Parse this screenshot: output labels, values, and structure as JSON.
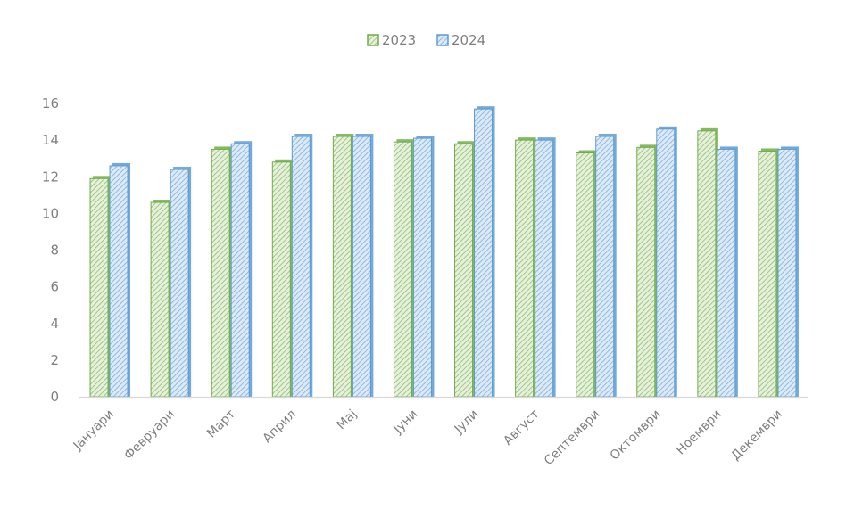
{
  "chart_data": {
    "type": "bar",
    "title": "",
    "xlabel": "",
    "ylabel": "",
    "categories": [
      "Јануари",
      "Февруари",
      "Март",
      "Април",
      "Мај",
      "Јуни",
      "Јули",
      "Август",
      "Септември",
      "Октомври",
      "Ноември",
      "Декември"
    ],
    "series": [
      {
        "name": "2023",
        "color": "#70ad47",
        "values": [
          11.9,
          10.6,
          13.5,
          12.8,
          14.2,
          13.9,
          13.8,
          14.0,
          13.3,
          13.6,
          14.5,
          13.4
        ]
      },
      {
        "name": "2024",
        "color": "#5b9bd5",
        "values": [
          12.6,
          12.4,
          13.8,
          14.2,
          14.2,
          14.1,
          15.7,
          14.0,
          14.2,
          14.6,
          13.5,
          13.5
        ]
      }
    ],
    "ylim": [
      0,
      16
    ],
    "yticks": [
      0,
      2,
      4,
      6,
      8,
      10,
      12,
      14,
      16
    ],
    "legend_position": "top-center",
    "grid": false,
    "bar_fill": "hatched"
  }
}
